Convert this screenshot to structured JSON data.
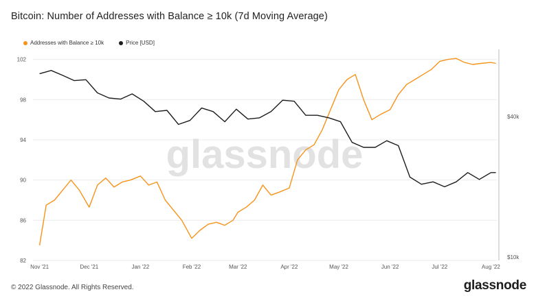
{
  "title": "Bitcoin: Number of Addresses with Balance ≥ 10k (7d Moving Average)",
  "legend": [
    {
      "label": "Addresses with Balance ≥ 10k",
      "color": "#f7931a"
    },
    {
      "label": "Price [USD]",
      "color": "#1c1c1c"
    }
  ],
  "watermark": "glassnode",
  "footer": {
    "copyright": "© 2022 Glassnode. All Rights Reserved.",
    "logo": "glassnode"
  },
  "chart_data": {
    "type": "line",
    "title": "Bitcoin: Number of Addresses with Balance ≥ 10k (7d Moving Average)",
    "x_ticks": [
      "Nov '21",
      "Dec '21",
      "Jan '22",
      "Feb '22",
      "Mar '22",
      "Apr '22",
      "May '22",
      "Jun '22",
      "Jul '22",
      "Aug '22"
    ],
    "y_left": {
      "ticks": [
        82,
        86,
        90,
        94,
        98,
        102
      ],
      "range": [
        82,
        103
      ]
    },
    "y_right": {
      "ticks": [
        "$10k",
        "$40k"
      ],
      "scale": "log"
    },
    "grid": "horizontal",
    "legend_position": "top-left",
    "series": [
      {
        "name": "Addresses with Balance ≥ 10k",
        "axis": "left",
        "color": "#f7931a",
        "x": [
          "2021-11-01",
          "2021-11-05",
          "2021-11-10",
          "2021-11-15",
          "2021-11-20",
          "2021-11-25",
          "2021-12-01",
          "2021-12-06",
          "2021-12-11",
          "2021-12-16",
          "2021-12-21",
          "2021-12-26",
          "2022-01-01",
          "2022-01-06",
          "2022-01-11",
          "2022-01-16",
          "2022-01-21",
          "2022-01-26",
          "2022-02-01",
          "2022-02-06",
          "2022-02-11",
          "2022-02-16",
          "2022-02-21",
          "2022-02-26",
          "2022-03-01",
          "2022-03-06",
          "2022-03-11",
          "2022-03-16",
          "2022-03-21",
          "2022-03-26",
          "2022-04-01",
          "2022-04-06",
          "2022-04-11",
          "2022-04-16",
          "2022-04-21",
          "2022-04-26",
          "2022-05-01",
          "2022-05-06",
          "2022-05-11",
          "2022-05-16",
          "2022-05-21",
          "2022-05-26",
          "2022-06-01",
          "2022-06-06",
          "2022-06-11",
          "2022-06-16",
          "2022-06-21",
          "2022-06-26",
          "2022-07-01",
          "2022-07-06",
          "2022-07-11",
          "2022-07-16",
          "2022-07-21",
          "2022-07-26",
          "2022-08-01",
          "2022-08-04"
        ],
        "y": [
          83.5,
          87.5,
          88.0,
          89.0,
          90.0,
          89.0,
          87.3,
          89.5,
          90.2,
          89.3,
          89.8,
          90.0,
          90.4,
          89.5,
          89.8,
          88.0,
          87.0,
          86.0,
          84.2,
          85.0,
          85.6,
          85.8,
          85.5,
          86.0,
          86.8,
          87.3,
          88.0,
          89.5,
          88.5,
          88.8,
          89.2,
          92.0,
          93.0,
          93.5,
          95.0,
          97.0,
          99.0,
          100.0,
          100.5,
          98.0,
          96.0,
          96.5,
          97.0,
          98.5,
          99.5,
          100.0,
          100.5,
          101.0,
          101.8,
          102.0,
          102.1,
          101.7,
          101.5,
          101.6,
          101.7,
          101.6
        ],
        "note_x_dates_approx": true
      },
      {
        "name": "Price [USD]",
        "axis": "right",
        "color": "#1c1c1c",
        "x": [
          "2021-11-01",
          "2021-11-08",
          "2021-11-15",
          "2021-11-22",
          "2021-11-29",
          "2021-12-06",
          "2021-12-13",
          "2021-12-20",
          "2021-12-27",
          "2022-01-03",
          "2022-01-10",
          "2022-01-17",
          "2022-01-24",
          "2022-01-31",
          "2022-02-07",
          "2022-02-14",
          "2022-02-21",
          "2022-02-28",
          "2022-03-07",
          "2022-03-14",
          "2022-03-21",
          "2022-03-28",
          "2022-04-04",
          "2022-04-11",
          "2022-04-18",
          "2022-04-25",
          "2022-05-02",
          "2022-05-09",
          "2022-05-16",
          "2022-05-23",
          "2022-05-30",
          "2022-06-06",
          "2022-06-13",
          "2022-06-20",
          "2022-06-27",
          "2022-07-04",
          "2022-07-11",
          "2022-07-18",
          "2022-07-25",
          "2022-08-01",
          "2022-08-04"
        ],
        "y": [
          61000,
          63000,
          60000,
          57000,
          57500,
          50500,
          48000,
          47500,
          50000,
          46500,
          42000,
          42500,
          37000,
          38500,
          43500,
          42000,
          38000,
          43000,
          39000,
          39500,
          42000,
          47000,
          46500,
          40500,
          40500,
          39500,
          38000,
          31000,
          29500,
          29500,
          31500,
          30000,
          22000,
          20500,
          21000,
          20000,
          21000,
          23000,
          21500,
          23000,
          23000
        ]
      }
    ]
  }
}
